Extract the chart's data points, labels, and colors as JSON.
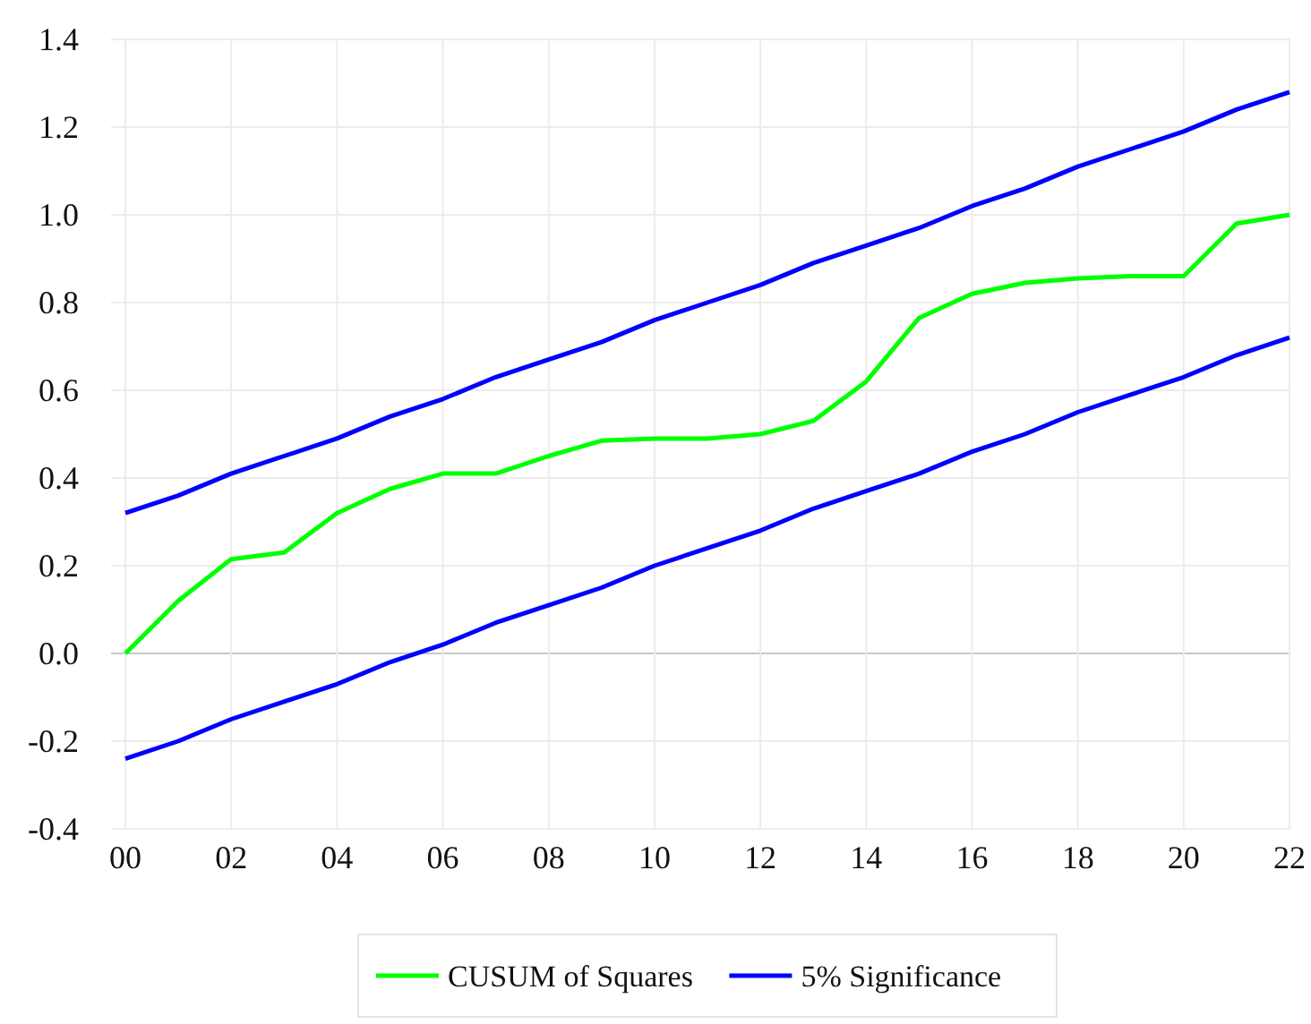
{
  "chart_data": {
    "type": "line",
    "x": [
      2000,
      2001,
      2002,
      2003,
      2004,
      2005,
      2006,
      2007,
      2008,
      2009,
      2010,
      2011,
      2012,
      2013,
      2014,
      2015,
      2016,
      2017,
      2018,
      2019,
      2020,
      2021,
      2022
    ],
    "series": [
      {
        "name": "CUSUM of Squares",
        "color": "#00ff00",
        "values": [
          0,
          0.12,
          0.215,
          0.23,
          0.32,
          0.375,
          0.41,
          0.41,
          0.45,
          0.485,
          0.49,
          0.49,
          0.5,
          0.53,
          0.62,
          0.765,
          0.82,
          0.845,
          0.855,
          0.86,
          0.86,
          0.98,
          1.0
        ]
      },
      {
        "name": "5% Significance",
        "color": "#0000ff",
        "values": [
          0.32,
          0.36,
          0.41,
          0.45,
          0.49,
          0.54,
          0.58,
          0.63,
          0.67,
          0.71,
          0.76,
          0.8,
          0.84,
          0.89,
          0.93,
          0.97,
          1.02,
          1.06,
          1.11,
          1.15,
          1.19,
          1.24,
          1.28
        ]
      },
      {
        "color": "#0000ff",
        "values": [
          -0.24,
          -0.2,
          -0.15,
          -0.11,
          -0.07,
          -0.02,
          0.02,
          0.07,
          0.11,
          0.15,
          0.2,
          0.24,
          0.28,
          0.33,
          0.37,
          0.41,
          0.46,
          0.5,
          0.55,
          0.59,
          0.63,
          0.68,
          0.72
        ]
      }
    ],
    "xlim": [
      2000,
      2022
    ],
    "xticks": [
      {
        "value": 2000,
        "label": "00"
      },
      {
        "value": 2002,
        "label": "02"
      },
      {
        "value": 2004,
        "label": "04"
      },
      {
        "value": 2006,
        "label": "06"
      },
      {
        "value": 2008,
        "label": "08"
      },
      {
        "value": 2010,
        "label": "10"
      },
      {
        "value": 2012,
        "label": "12"
      },
      {
        "value": 2014,
        "label": "14"
      },
      {
        "value": 2016,
        "label": "16"
      },
      {
        "value": 2018,
        "label": "18"
      },
      {
        "value": 2020,
        "label": "20"
      },
      {
        "value": 2022,
        "label": "22"
      }
    ],
    "ylim": [
      -0.4,
      1.4
    ],
    "yticks": [
      {
        "value": -0.4,
        "label": "-0.4"
      },
      {
        "value": -0.2,
        "label": "-0.2"
      },
      {
        "value": 0,
        "label": "0.0"
      },
      {
        "value": 0.2,
        "label": "0.2"
      },
      {
        "value": 0.4,
        "label": "0.4"
      },
      {
        "value": 0.6,
        "label": "0.6"
      },
      {
        "value": 0.8,
        "label": "0.8"
      },
      {
        "value": 1,
        "label": "1.0"
      },
      {
        "value": 1.2,
        "label": "1.2"
      },
      {
        "value": 1.4,
        "label": "1.4"
      }
    ],
    "grid": true,
    "legend": "bottom",
    "marker": "none",
    "line_style": "solid"
  }
}
